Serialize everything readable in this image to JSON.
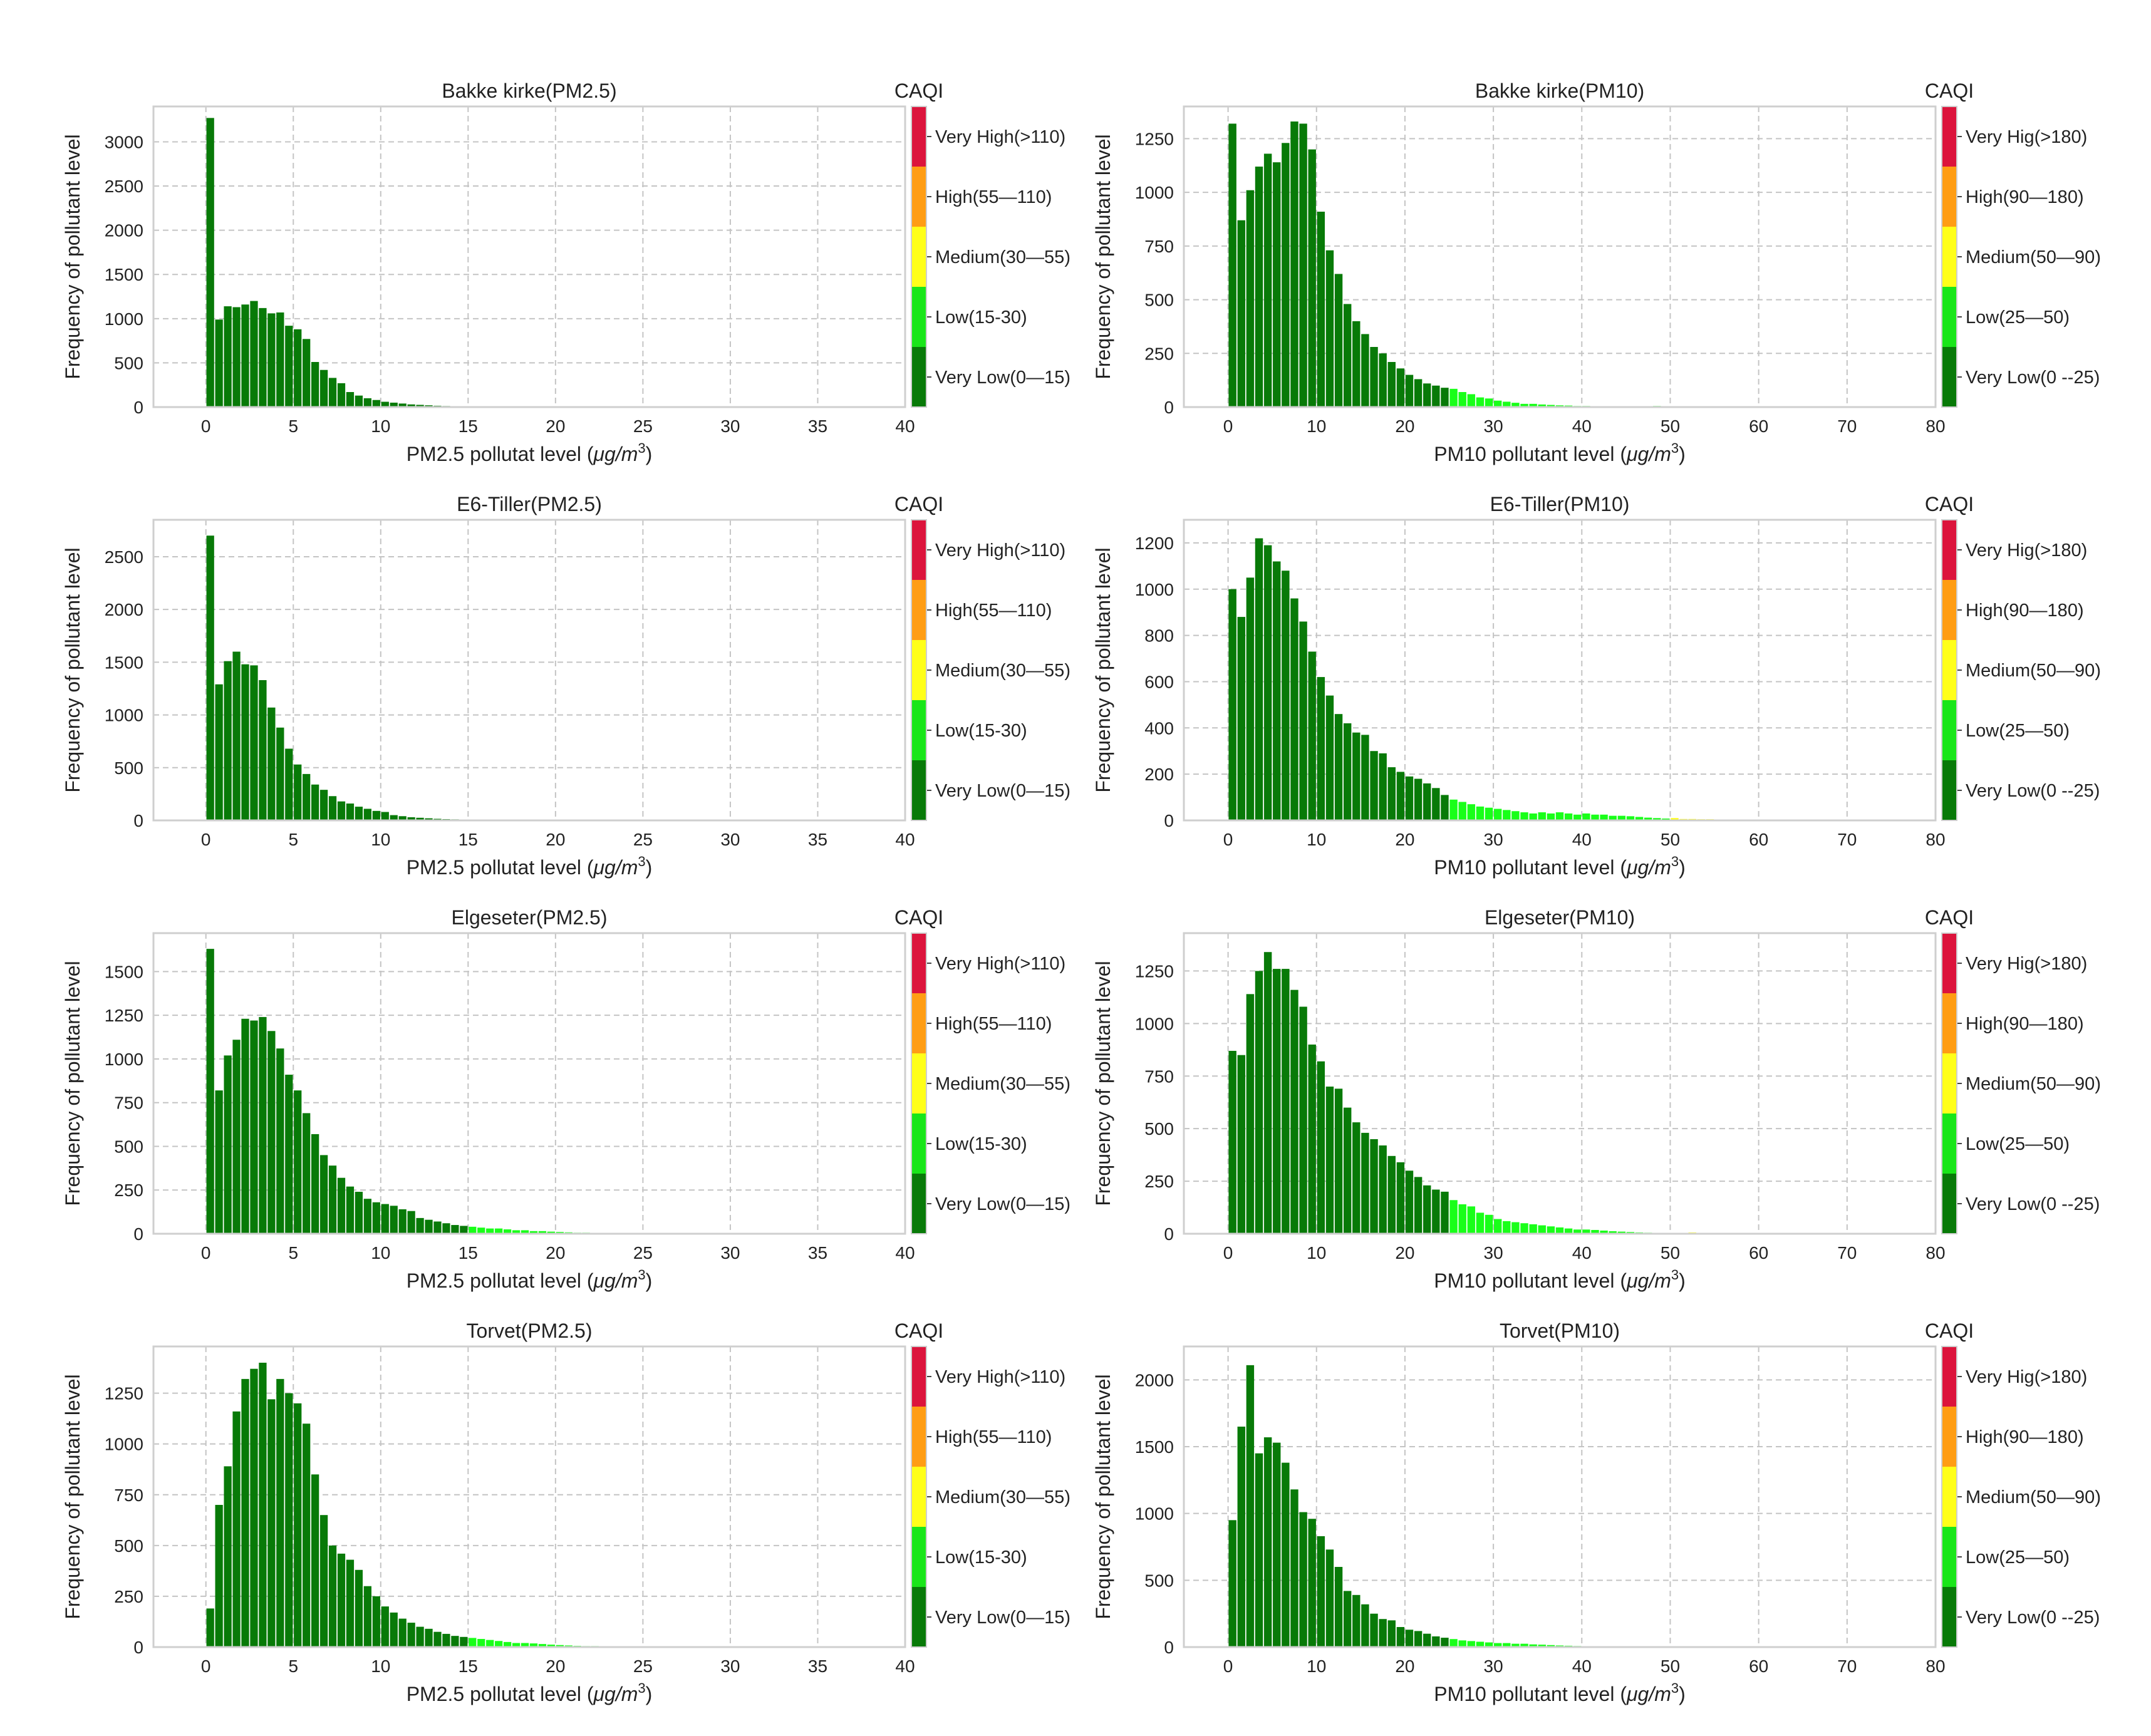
{
  "colors": {
    "very_low": "#087a08",
    "low": "#19ff19",
    "medium": "#ffff14",
    "high": "#ff9d14",
    "very_high": "#dc143c",
    "legend_very_low": "#087a08",
    "legend_low": "#19e619",
    "legend_medium": "#ffff1a",
    "legend_high": "#ff9d14",
    "legend_very_high": "#dc143c"
  },
  "chart_data": [
    {
      "type": "bar",
      "title": "Bakke kirke(PM2.5)",
      "xlabel_prefix": "PM2.5 pollutat level (",
      "xlabel_unit_main": "μg/m",
      "xlabel_unit_exp": "3",
      "xlabel_suffix": ")",
      "ylabel": "Frequency of pollutant level",
      "xlim": [
        -3,
        40
      ],
      "ylim": [
        0,
        3400
      ],
      "xticks": [
        0,
        5,
        10,
        15,
        20,
        25,
        30,
        35,
        40
      ],
      "yticks": [
        0,
        500,
        1000,
        1500,
        2000,
        2500,
        3000
      ],
      "bin_start": 0,
      "bin_width": 0.5,
      "thresholds": [
        15,
        30,
        55,
        110
      ],
      "values": [
        3270,
        990,
        1140,
        1130,
        1160,
        1200,
        1120,
        1060,
        1070,
        920,
        880,
        770,
        510,
        420,
        330,
        270,
        170,
        130,
        100,
        80,
        60,
        50,
        40,
        30,
        25,
        20,
        15,
        12,
        10,
        8,
        7,
        6,
        5,
        4,
        3,
        3,
        5,
        4,
        3,
        2,
        2,
        2,
        2,
        10,
        2,
        2,
        2,
        2,
        2,
        1,
        2,
        5,
        2,
        1,
        1,
        1,
        1,
        1,
        1,
        1,
        1,
        1
      ],
      "legend_title": "CAQI",
      "legend": [
        "Very High(>110)",
        "High(55—110)",
        "Medium(30—55)",
        "Low(15-30)",
        "Very Low(0—15)"
      ]
    },
    {
      "type": "bar",
      "title": "Bakke kirke(PM10)",
      "xlabel_prefix": "PM10 pollutant level (",
      "xlabel_unit_main": "μg/m",
      "xlabel_unit_exp": "3",
      "xlabel_suffix": ")",
      "ylabel": "Frequency of pollutant level",
      "xlim": [
        -5,
        80
      ],
      "ylim": [
        0,
        1400
      ],
      "xticks": [
        0,
        10,
        20,
        30,
        40,
        50,
        60,
        70,
        80
      ],
      "yticks": [
        0,
        250,
        500,
        750,
        1000,
        1250
      ],
      "bin_start": 0,
      "bin_width": 1,
      "thresholds": [
        25,
        50,
        90,
        180
      ],
      "values": [
        1320,
        870,
        1010,
        1120,
        1180,
        1140,
        1230,
        1330,
        1320,
        1200,
        910,
        730,
        620,
        480,
        400,
        340,
        280,
        250,
        210,
        180,
        150,
        130,
        110,
        100,
        90,
        85,
        70,
        60,
        45,
        40,
        30,
        25,
        20,
        15,
        15,
        12,
        10,
        8,
        7,
        5,
        5,
        4,
        3,
        3,
        3,
        2,
        2,
        2,
        5,
        2,
        1,
        1,
        1,
        1,
        1
      ],
      "legend_title": "CAQI",
      "legend": [
        "Very Hig(>180)",
        "High(90—180)",
        "Medium(50—90)",
        "Low(25—50)",
        "Very Low(0 --25)"
      ]
    },
    {
      "type": "bar",
      "title": "E6-Tiller(PM2.5)",
      "xlabel_prefix": "PM2.5 pollutat level (",
      "xlabel_unit_main": "μg/m",
      "xlabel_unit_exp": "3",
      "xlabel_suffix": ")",
      "ylabel": "Frequency of pollutant level",
      "xlim": [
        -3,
        40
      ],
      "ylim": [
        0,
        2850
      ],
      "xticks": [
        0,
        5,
        10,
        15,
        20,
        25,
        30,
        35,
        40
      ],
      "yticks": [
        0,
        500,
        1000,
        1500,
        2000,
        2500
      ],
      "bin_start": 0,
      "bin_width": 0.5,
      "thresholds": [
        15,
        30,
        55,
        110
      ],
      "values": [
        2700,
        1290,
        1510,
        1600,
        1480,
        1470,
        1330,
        1070,
        880,
        680,
        530,
        440,
        340,
        290,
        230,
        180,
        160,
        130,
        110,
        90,
        80,
        50,
        40,
        30,
        25,
        20,
        15,
        12,
        10,
        8,
        7,
        5,
        4,
        3,
        3,
        2,
        2,
        2,
        2,
        1,
        1,
        1,
        1
      ],
      "legend_title": "CAQI",
      "legend": [
        "Very High(>110)",
        "High(55—110)",
        "Medium(30—55)",
        "Low(15-30)",
        "Very Low(0—15)"
      ]
    },
    {
      "type": "bar",
      "title": "E6-Tiller(PM10)",
      "xlabel_prefix": "PM10 pollutant level (",
      "xlabel_unit_main": "μg/m",
      "xlabel_unit_exp": "3",
      "xlabel_suffix": ")",
      "ylabel": "Frequency of pollutant level",
      "xlim": [
        -5,
        80
      ],
      "ylim": [
        0,
        1300
      ],
      "xticks": [
        0,
        10,
        20,
        30,
        40,
        50,
        60,
        70,
        80
      ],
      "yticks": [
        0,
        200,
        400,
        600,
        800,
        1000,
        1200
      ],
      "bin_start": 0,
      "bin_width": 1,
      "thresholds": [
        25,
        50,
        90,
        180
      ],
      "values": [
        1000,
        880,
        1050,
        1220,
        1190,
        1120,
        1080,
        960,
        860,
        730,
        620,
        540,
        460,
        420,
        380,
        370,
        300,
        290,
        230,
        210,
        190,
        180,
        160,
        140,
        110,
        90,
        80,
        70,
        60,
        55,
        50,
        45,
        40,
        35,
        30,
        35,
        30,
        35,
        30,
        25,
        30,
        25,
        25,
        20,
        20,
        18,
        15,
        12,
        10,
        8,
        10,
        6,
        6,
        5,
        5,
        4,
        4,
        3,
        3,
        3,
        3,
        3,
        2,
        2,
        2,
        2,
        2,
        2,
        2,
        2,
        2,
        2,
        2,
        2,
        2,
        2,
        2,
        2,
        2,
        2
      ],
      "legend_title": "CAQI",
      "legend": [
        "Very Hig(>180)",
        "High(90—180)",
        "Medium(50—90)",
        "Low(25—50)",
        "Very Low(0 --25)"
      ]
    },
    {
      "type": "bar",
      "title": "Elgeseter(PM2.5)",
      "xlabel_prefix": "PM2.5 pollutat level (",
      "xlabel_unit_main": "μg/m",
      "xlabel_unit_exp": "3",
      "xlabel_suffix": ")",
      "ylabel": "Frequency of pollutant level",
      "xlim": [
        -3,
        40
      ],
      "ylim": [
        0,
        1720
      ],
      "xticks": [
        0,
        5,
        10,
        15,
        20,
        25,
        30,
        35,
        40
      ],
      "yticks": [
        0,
        250,
        500,
        750,
        1000,
        1250,
        1500
      ],
      "bin_start": 0,
      "bin_width": 0.5,
      "thresholds": [
        15,
        30,
        55,
        110
      ],
      "values": [
        1630,
        820,
        1020,
        1110,
        1230,
        1220,
        1240,
        1160,
        1060,
        910,
        820,
        690,
        570,
        450,
        390,
        320,
        270,
        240,
        200,
        180,
        170,
        160,
        140,
        130,
        90,
        80,
        70,
        60,
        50,
        45,
        40,
        35,
        30,
        30,
        25,
        20,
        20,
        15,
        15,
        12,
        10,
        8,
        6,
        6,
        5,
        4,
        4,
        4,
        3,
        3,
        3,
        5,
        3,
        3,
        2,
        2,
        2,
        1,
        1,
        1
      ],
      "legend_title": "CAQI",
      "legend": [
        "Very High(>110)",
        "High(55—110)",
        "Medium(30—55)",
        "Low(15-30)",
        "Very Low(0—15)"
      ]
    },
    {
      "type": "bar",
      "title": "Elgeseter(PM10)",
      "xlabel_prefix": "PM10 pollutant level (",
      "xlabel_unit_main": "μg/m",
      "xlabel_unit_exp": "3",
      "xlabel_suffix": ")",
      "ylabel": "Frequency of pollutant level",
      "xlim": [
        -5,
        80
      ],
      "ylim": [
        0,
        1430
      ],
      "xticks": [
        0,
        10,
        20,
        30,
        40,
        50,
        60,
        70,
        80
      ],
      "yticks": [
        0,
        250,
        500,
        750,
        1000,
        1250
      ],
      "bin_start": 0,
      "bin_width": 1,
      "thresholds": [
        25,
        50,
        90,
        180
      ],
      "values": [
        870,
        850,
        1140,
        1250,
        1340,
        1260,
        1260,
        1160,
        1080,
        900,
        820,
        700,
        690,
        600,
        530,
        480,
        450,
        420,
        370,
        340,
        300,
        270,
        230,
        210,
        200,
        160,
        140,
        130,
        100,
        90,
        70,
        60,
        55,
        50,
        45,
        40,
        35,
        30,
        25,
        20,
        20,
        18,
        15,
        12,
        10,
        8,
        6,
        5,
        4,
        3,
        3,
        3,
        6,
        2,
        2,
        2,
        1,
        1,
        1,
        1
      ],
      "legend_title": "CAQI",
      "legend": [
        "Very Hig(>180)",
        "High(90—180)",
        "Medium(50—90)",
        "Low(25—50)",
        "Very Low(0 --25)"
      ]
    },
    {
      "type": "bar",
      "title": "Torvet(PM2.5)",
      "xlabel_prefix": "PM2.5 pollutat level (",
      "xlabel_unit_main": "μg/m",
      "xlabel_unit_exp": "3",
      "xlabel_suffix": ")",
      "ylabel": "Frequency of pollutant level",
      "xlim": [
        -3,
        40
      ],
      "ylim": [
        0,
        1480
      ],
      "xticks": [
        0,
        5,
        10,
        15,
        20,
        25,
        30,
        35,
        40
      ],
      "yticks": [
        0,
        250,
        500,
        750,
        1000,
        1250
      ],
      "bin_start": 0,
      "bin_width": 0.5,
      "thresholds": [
        15,
        30,
        55,
        110
      ],
      "values": [
        190,
        700,
        890,
        1160,
        1320,
        1370,
        1400,
        1220,
        1320,
        1250,
        1200,
        1100,
        850,
        650,
        500,
        460,
        430,
        380,
        300,
        250,
        200,
        170,
        140,
        120,
        100,
        90,
        75,
        65,
        55,
        50,
        45,
        40,
        35,
        30,
        25,
        20,
        20,
        18,
        15,
        12,
        10,
        8,
        6,
        5,
        5,
        4,
        4,
        3,
        3,
        3,
        3,
        3,
        3,
        2,
        2,
        2,
        2,
        2,
        1,
        1,
        1
      ],
      "legend_title": "CAQI",
      "legend": [
        "Very High(>110)",
        "High(55—110)",
        "Medium(30—55)",
        "Low(15-30)",
        "Very Low(0—15)"
      ]
    },
    {
      "type": "bar",
      "title": "Torvet(PM10)",
      "xlabel_prefix": "PM10 pollutant level (",
      "xlabel_unit_main": "μg/m",
      "xlabel_unit_exp": "3",
      "xlabel_suffix": ")",
      "ylabel": "Frequency of pollutant level",
      "xlim": [
        -5,
        80
      ],
      "ylim": [
        0,
        2250
      ],
      "xticks": [
        0,
        10,
        20,
        30,
        40,
        50,
        60,
        70,
        80
      ],
      "yticks": [
        0,
        500,
        1000,
        1500,
        2000
      ],
      "bin_start": 0,
      "bin_width": 1,
      "thresholds": [
        25,
        50,
        90,
        180
      ],
      "values": [
        950,
        1650,
        2110,
        1450,
        1570,
        1530,
        1380,
        1180,
        1010,
        960,
        830,
        730,
        600,
        420,
        390,
        320,
        250,
        210,
        200,
        150,
        130,
        120,
        100,
        80,
        70,
        60,
        50,
        45,
        40,
        35,
        30,
        30,
        25,
        25,
        20,
        18,
        15,
        12,
        10,
        8,
        6,
        5,
        5,
        4,
        3,
        3,
        2,
        2,
        2,
        2,
        2,
        1,
        1,
        1,
        1
      ],
      "legend_title": "CAQI",
      "legend": [
        "Very Hig(>180)",
        "High(90—180)",
        "Medium(50—90)",
        "Low(25—50)",
        "Very Low(0 --25)"
      ]
    }
  ]
}
